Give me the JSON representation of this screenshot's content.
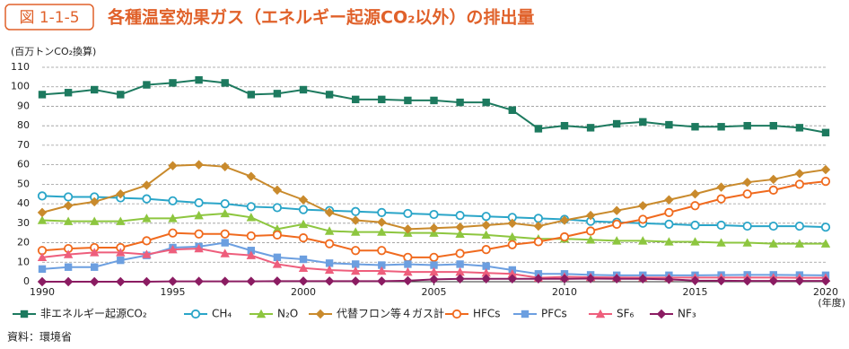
{
  "chart_data": {
    "type": "line",
    "figure_label": "図 1-1-5",
    "title": "各種温室効果ガス（エネルギー起源CO₂以外）の排出量",
    "y_label": "(百万トンCO₂換算)",
    "x_label": "(年度)",
    "source": "資料：環境省",
    "x": [
      1990,
      1991,
      1992,
      1993,
      1994,
      1995,
      1996,
      1997,
      1998,
      1999,
      2000,
      2001,
      2002,
      2003,
      2004,
      2005,
      2006,
      2007,
      2008,
      2009,
      2010,
      2011,
      2012,
      2013,
      2014,
      2015,
      2016,
      2017,
      2018,
      2019,
      2020
    ],
    "xlim": [
      1990,
      2020
    ],
    "xticks": [
      1990,
      1995,
      2000,
      2005,
      2010,
      2015,
      2020
    ],
    "ylim": [
      0,
      110
    ],
    "yticks": [
      0,
      10,
      20,
      30,
      40,
      50,
      60,
      70,
      80,
      90,
      100,
      110
    ],
    "grid": true,
    "legend": "bottom",
    "series": [
      {
        "name": "非エネルギー起源CO₂",
        "color": "#1d7a5f",
        "marker": "square",
        "values": [
          96,
          97,
          98.5,
          96,
          101,
          102,
          103.5,
          102,
          96,
          96.5,
          98.5,
          96,
          93.5,
          93.5,
          93,
          93,
          92,
          92,
          88,
          78.5,
          80,
          79,
          81,
          82,
          80.5,
          79.5,
          79.5,
          80,
          80,
          79,
          76.5
        ]
      },
      {
        "name": "CH₄",
        "color": "#2aa5c8",
        "marker": "circle",
        "values": [
          44,
          43.5,
          43.5,
          43,
          42.5,
          41.5,
          40.5,
          40,
          38.5,
          38,
          37,
          36.5,
          36,
          35.5,
          35,
          34.5,
          34,
          33.5,
          33,
          32.5,
          32,
          31,
          30.5,
          30,
          29.5,
          29,
          29,
          28.5,
          28.5,
          28.5,
          28
        ]
      },
      {
        "name": "N₂O",
        "color": "#8dc63f",
        "marker": "triangle",
        "values": [
          31.5,
          31,
          31,
          31,
          32.5,
          32.5,
          34,
          35,
          33,
          27,
          29.5,
          26,
          25.5,
          25.5,
          25,
          25,
          24.5,
          24,
          23,
          22,
          22,
          21.5,
          21,
          21,
          20.5,
          20.5,
          20,
          20,
          19.5,
          19.5,
          19.5
        ]
      },
      {
        "name": "代替フロン等４ガス計",
        "color": "#c98a2c",
        "marker": "diamond",
        "values": [
          35.5,
          39,
          41,
          45,
          49.5,
          59.5,
          60,
          59,
          54,
          47,
          42,
          35.5,
          31.5,
          30.5,
          27,
          27.5,
          28,
          29,
          30,
          28.5,
          31.5,
          34,
          36.5,
          39,
          42,
          45,
          48.5,
          51,
          52.5,
          55.5,
          57.5
        ]
      },
      {
        "name": "HFCs",
        "color": "#f06a1e",
        "marker": "circle",
        "values": [
          16,
          17,
          17.5,
          17.5,
          21,
          25,
          24.5,
          24.5,
          23.5,
          24,
          22.5,
          19.5,
          16,
          16,
          12.5,
          12.5,
          14.5,
          16.5,
          19,
          20.5,
          23,
          26,
          29.5,
          32,
          35.5,
          39,
          42.5,
          45,
          47,
          50,
          51.5
        ]
      },
      {
        "name": "PFCs",
        "color": "#6c9fe0",
        "marker": "square",
        "values": [
          6.5,
          7.5,
          7.5,
          11,
          13.5,
          17.5,
          18,
          20,
          16,
          12.5,
          11.5,
          9.5,
          9,
          8.5,
          9,
          8.5,
          9,
          8,
          6,
          4,
          4,
          3.5,
          3.3,
          3.3,
          3.3,
          3.3,
          3.4,
          3.5,
          3.5,
          3.4,
          3.3
        ]
      },
      {
        "name": "SF₆",
        "color": "#ee5e7c",
        "marker": "triangle",
        "values": [
          12.5,
          14,
          15,
          15,
          14,
          16.5,
          17,
          14.5,
          13.5,
          9,
          7,
          6,
          5.5,
          5.5,
          5,
          5,
          5,
          4.5,
          4,
          2,
          2.5,
          2.3,
          2.2,
          2.1,
          2.1,
          2.1,
          2.1,
          2.1,
          2.1,
          2,
          2
        ]
      },
      {
        "name": "NF₃",
        "color": "#8b1c62",
        "marker": "diamond",
        "values": [
          0,
          0,
          0,
          0,
          0,
          0.2,
          0.2,
          0.2,
          0.2,
          0.3,
          0.3,
          0.3,
          0.3,
          0.3,
          0.5,
          1.2,
          1.5,
          1.5,
          1.5,
          1.5,
          1.5,
          1.6,
          1.5,
          1.5,
          1.2,
          0.6,
          0.5,
          0.4,
          0.4,
          0.4,
          0.4
        ]
      }
    ]
  }
}
